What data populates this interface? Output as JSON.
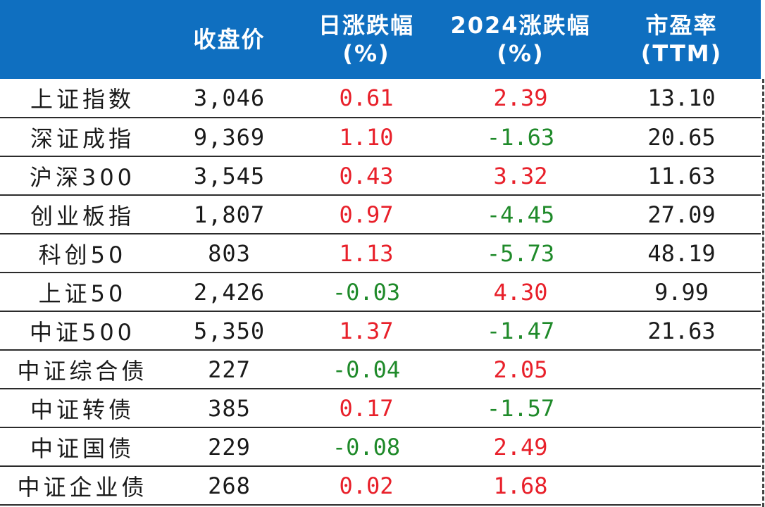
{
  "header": {
    "col0": "",
    "col1": "收盘价",
    "col2_line1": "日涨跌幅",
    "col2_line2": "(%)",
    "col3_line1": "2024涨跌幅",
    "col3_line2": "(%)",
    "col4_line1": "市盈率",
    "col4_line2": "(TTM)"
  },
  "colors": {
    "header_bg": "#0f6fc0",
    "positive": "#e8202a",
    "negative": "#1f8a2a"
  },
  "rows": [
    {
      "name": "上证指数",
      "close": "3,046",
      "daily": "0.61",
      "daily_sign": "pos",
      "ytd": "2.39",
      "ytd_sign": "pos",
      "pe": "13.10"
    },
    {
      "name": "深证成指",
      "close": "9,369",
      "daily": "1.10",
      "daily_sign": "pos",
      "ytd": "-1.63",
      "ytd_sign": "neg",
      "pe": "20.65"
    },
    {
      "name": "沪深300",
      "close": "3,545",
      "daily": "0.43",
      "daily_sign": "pos",
      "ytd": "3.32",
      "ytd_sign": "pos",
      "pe": "11.63"
    },
    {
      "name": "创业板指",
      "close": "1,807",
      "daily": "0.97",
      "daily_sign": "pos",
      "ytd": "-4.45",
      "ytd_sign": "neg",
      "pe": "27.09"
    },
    {
      "name": "科创50",
      "close": "803",
      "daily": "1.13",
      "daily_sign": "pos",
      "ytd": "-5.73",
      "ytd_sign": "neg",
      "pe": "48.19"
    },
    {
      "name": "上证50",
      "close": "2,426",
      "daily": "-0.03",
      "daily_sign": "neg",
      "ytd": "4.30",
      "ytd_sign": "pos",
      "pe": "9.99"
    },
    {
      "name": "中证500",
      "close": "5,350",
      "daily": "1.37",
      "daily_sign": "pos",
      "ytd": "-1.47",
      "ytd_sign": "neg",
      "pe": "21.63"
    },
    {
      "name": "中证综合债",
      "close": "227",
      "daily": "-0.04",
      "daily_sign": "neg",
      "ytd": "2.05",
      "ytd_sign": "pos",
      "pe": ""
    },
    {
      "name": "中证转债",
      "close": "385",
      "daily": "0.17",
      "daily_sign": "pos",
      "ytd": "-1.57",
      "ytd_sign": "neg",
      "pe": ""
    },
    {
      "name": "中证国债",
      "close": "229",
      "daily": "-0.08",
      "daily_sign": "neg",
      "ytd": "2.49",
      "ytd_sign": "pos",
      "pe": ""
    },
    {
      "name": "中证企业债",
      "close": "268",
      "daily": "0.02",
      "daily_sign": "pos",
      "ytd": "1.68",
      "ytd_sign": "pos",
      "pe": ""
    }
  ]
}
